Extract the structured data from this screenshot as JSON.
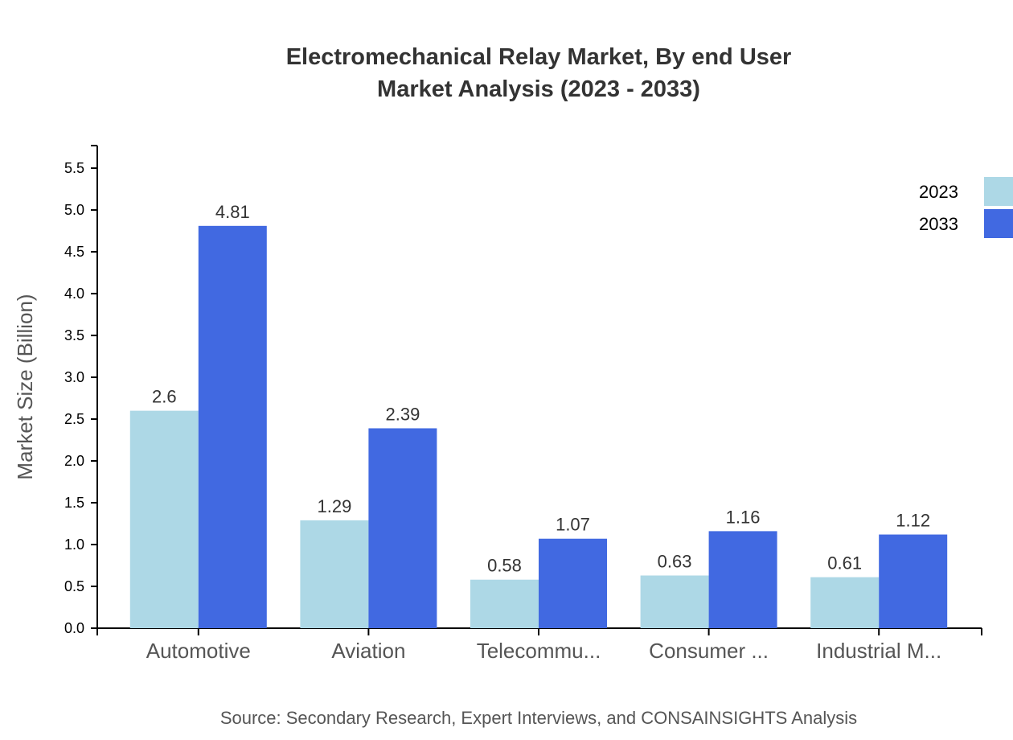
{
  "chart_data": {
    "type": "bar",
    "title": "Electromechanical Relay Market, By end User",
    "subtitle": "Market Analysis (2023 - 2033)",
    "xlabel": "",
    "ylabel": "Market Size (Billion)",
    "ylim": [
      0,
      5.77
    ],
    "yticks": [
      "0.0",
      "0.5",
      "1.0",
      "1.5",
      "2.0",
      "2.5",
      "3.0",
      "3.5",
      "4.0",
      "4.5",
      "5.0",
      "5.5"
    ],
    "categories": [
      "Automotive",
      "Aviation",
      "Telecommu...",
      "Consumer ...",
      "Industrial M..."
    ],
    "series": [
      {
        "name": "2023",
        "color": "#ADD8E6",
        "values": [
          2.6,
          1.29,
          0.58,
          0.63,
          0.61
        ]
      },
      {
        "name": "2033",
        "color": "#4169E1",
        "values": [
          4.81,
          2.39,
          1.07,
          1.16,
          1.12
        ]
      }
    ],
    "grid": false,
    "legend_position": "top-right",
    "source": "Source: Secondary Research, Expert Interviews, and CONSAINSIGHTS Analysis"
  }
}
